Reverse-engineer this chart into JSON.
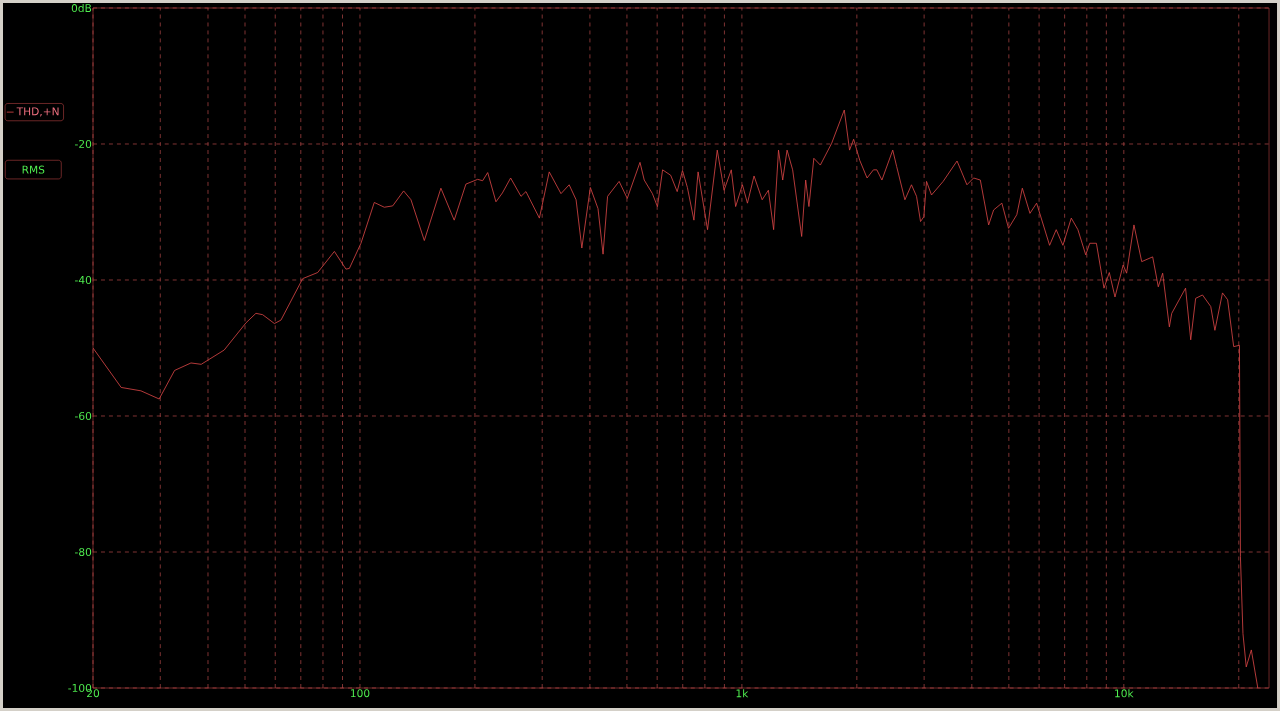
{
  "chart_data": {
    "type": "line",
    "annotations": [
      "RMS"
    ],
    "xlim": [
      20,
      24000
    ],
    "ylim": [
      -100,
      0
    ],
    "xticks": [
      20,
      {
        "value": 30,
        "label": null
      },
      {
        "value": 40,
        "label": null
      },
      {
        "value": 50,
        "label": null
      },
      {
        "value": 60,
        "label": null
      },
      {
        "value": 70,
        "label": null
      },
      {
        "value": 80,
        "label": null
      },
      {
        "value": 90,
        "label": null
      },
      100,
      {
        "value": 200,
        "label": null
      },
      {
        "value": 300,
        "label": null
      },
      {
        "value": 400,
        "label": null
      },
      {
        "value": 500,
        "label": null
      },
      {
        "value": 600,
        "label": null
      },
      {
        "value": 700,
        "label": null
      },
      {
        "value": 800,
        "label": null
      },
      {
        "value": 900,
        "label": null
      },
      {
        "value": 1000,
        "label": "1k"
      },
      {
        "value": 2000,
        "label": null
      },
      {
        "value": 3000,
        "label": null
      },
      {
        "value": 4000,
        "label": null
      },
      {
        "value": 5000,
        "label": null
      },
      {
        "value": 6000,
        "label": null
      },
      {
        "value": 7000,
        "label": null
      },
      {
        "value": 8000,
        "label": null
      },
      {
        "value": 9000,
        "label": null
      },
      {
        "value": 10000,
        "label": "10k"
      },
      {
        "value": 20000,
        "label": null
      }
    ],
    "yticks": [
      {
        "value": 0,
        "label": "0dB"
      },
      -20,
      -40,
      -60,
      -80,
      -100
    ],
    "log": "x",
    "grid": true,
    "legend": "left",
    "series": [
      {
        "name": "THD,+N",
        "color": "#e04848",
        "x": [
          20,
          23.7,
          26.7,
          29.8,
          32.7,
          36.1,
          38.4,
          44.1,
          50.3,
          53.4,
          55.6,
          59.7,
          62.1,
          70.8,
          77.5,
          85.7,
          91.9,
          93.8,
          100.6,
          109,
          115.8,
          121.8,
          130.1,
          136,
          147.4,
          162.9,
          176.5,
          189.4,
          203.3,
          209.5,
          216,
          227,
          236,
          248,
          264,
          272,
          295,
          313,
          336,
          353,
          368,
          381,
          401,
          420,
          433,
          445,
          477,
          501,
          541,
          555,
          583,
          601,
          620,
          651,
          677,
          699,
          720,
          749,
          768,
          813,
          862,
          898,
          938,
          963,
          1003,
          1034,
          1076,
          1130,
          1173,
          1211,
          1247,
          1279,
          1313,
          1358,
          1434,
          1469,
          1498,
          1543,
          1605,
          1718,
          1854,
          1914,
          1962,
          2035,
          2127,
          2210,
          2256,
          2326,
          2483,
          2542,
          2672,
          2780,
          2866,
          2936,
          2995,
          3044,
          3137,
          3365,
          3659,
          3884,
          4043,
          4210,
          4427,
          4562,
          4794,
          4991,
          5245,
          5423,
          5679,
          5912,
          6392,
          6654,
          6927,
          7285,
          7584,
          7949,
          8144,
          8477,
          8874,
          9163,
          9482,
          9960,
          10170,
          10630,
          11140,
          11900,
          12310,
          12640,
          13160,
          13350,
          14510,
          14970,
          15420,
          16070,
          16890,
          17320,
          18130,
          18700,
          19400,
          20080,
          20200,
          20510,
          20920,
          21570,
          22430
        ],
        "values": [
          -50.0,
          -55.8,
          -56.3,
          -57.5,
          -53.3,
          -52.2,
          -52.4,
          -50.3,
          -46.3,
          -44.9,
          -45.1,
          -46.4,
          -45.9,
          -39.8,
          -38.9,
          -35.8,
          -38.4,
          -38.3,
          -34.6,
          -28.6,
          -29.3,
          -29.1,
          -26.9,
          -28.2,
          -34.2,
          -26.5,
          -31.2,
          -25.9,
          -25.2,
          -25.4,
          -24.2,
          -28.5,
          -27.2,
          -25.0,
          -27.7,
          -27.0,
          -30.9,
          -24.1,
          -27.3,
          -26.0,
          -28.2,
          -35.3,
          -26.4,
          -29.5,
          -36.2,
          -27.7,
          -25.5,
          -28.0,
          -22.7,
          -25.3,
          -27.3,
          -29.2,
          -23.8,
          -24.6,
          -27.0,
          -23.9,
          -26.4,
          -31.2,
          -24.1,
          -32.6,
          -20.9,
          -26.8,
          -23.8,
          -29.2,
          -26.0,
          -28.7,
          -24.7,
          -28.2,
          -26.8,
          -32.6,
          -20.9,
          -25.3,
          -20.9,
          -23.8,
          -33.6,
          -25.3,
          -29.2,
          -22.1,
          -23.1,
          -19.9,
          -15.0,
          -20.9,
          -19.3,
          -22.4,
          -25.0,
          -23.8,
          -23.8,
          -25.3,
          -20.9,
          -23.3,
          -28.2,
          -26.0,
          -27.7,
          -31.4,
          -30.7,
          -25.5,
          -27.5,
          -25.5,
          -22.5,
          -26.0,
          -25.0,
          -25.3,
          -31.9,
          -29.7,
          -28.7,
          -32.4,
          -30.4,
          -26.5,
          -30.2,
          -28.7,
          -34.9,
          -32.6,
          -34.9,
          -30.9,
          -32.6,
          -36.3,
          -34.6,
          -34.6,
          -41.2,
          -38.9,
          -42.5,
          -37.8,
          -39.0,
          -31.9,
          -37.3,
          -36.6,
          -41.0,
          -39.0,
          -46.9,
          -44.9,
          -41.2,
          -48.8,
          -42.7,
          -42.2,
          -43.9,
          -47.4,
          -41.9,
          -42.9,
          -49.8,
          -49.6,
          -80.7,
          -92.0,
          -96.9,
          -94.4,
          -100
        ]
      }
    ]
  }
}
